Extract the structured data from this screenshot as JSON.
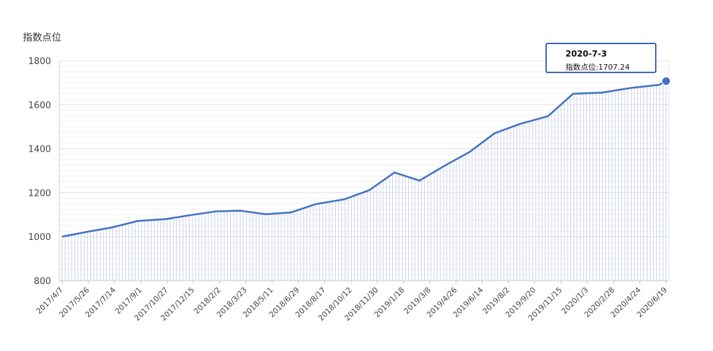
{
  "chart_data": {
    "type": "line",
    "ylabel": "指数点位",
    "ylim": [
      800,
      1800
    ],
    "yticks": [
      800,
      1000,
      1200,
      1400,
      1600,
      1800
    ],
    "xtick_labels": [
      "2017/4/7",
      "2017/5/26",
      "2017/7/14",
      "2017/9/1",
      "2017/10/27",
      "2017/12/15",
      "2018/2/2",
      "2018/3/23",
      "2018/5/11",
      "2018/6/29",
      "2018/8/17",
      "2018/10/12",
      "2018/11/30",
      "2019/1/18",
      "2019/3/8",
      "2019/4/26",
      "2019/6/14",
      "2019/8/2",
      "2019/9/20",
      "2019/11/15",
      "2020/1/3",
      "2020/2/28",
      "2020/4/24",
      "2020/6/19"
    ],
    "grid": true,
    "series": [
      {
        "color": "#4472c4",
        "points": [
          [
            "2017/4/7",
            1000
          ],
          [
            "2017/5/26",
            1022
          ],
          [
            "2017/7/14",
            1042
          ],
          [
            "2017/9/1",
            1071
          ],
          [
            "2017/10/27",
            1080
          ],
          [
            "2017/12/15",
            1098
          ],
          [
            "2018/2/2",
            1115
          ],
          [
            "2018/3/23",
            1118
          ],
          [
            "2018/5/11",
            1102
          ],
          [
            "2018/6/29",
            1110
          ],
          [
            "2018/8/17",
            1148
          ],
          [
            "2018/10/12",
            1170
          ],
          [
            "2018/11/30",
            1212
          ],
          [
            "2019/1/18",
            1292
          ],
          [
            "2019/3/8",
            1255
          ],
          [
            "2019/4/26",
            1322
          ],
          [
            "2019/6/14",
            1385
          ],
          [
            "2019/8/2",
            1470
          ],
          [
            "2019/9/20",
            1512
          ],
          [
            "2019/11/15",
            1548
          ],
          [
            "2020/1/3",
            1650
          ],
          [
            "2020/2/28",
            1655
          ],
          [
            "2020/4/24",
            1676
          ],
          [
            "2020/6/19",
            1690
          ],
          [
            "2020/7/3",
            1707.24
          ]
        ]
      }
    ]
  },
  "tooltip": {
    "date": "2020-7-3",
    "label": "指数点位:",
    "value": "1707.24"
  },
  "colors": {
    "line": "#4472c4",
    "highlight_point": "#4472c4",
    "tooltip_border": "#3c63b8",
    "grid": "#e0e0e0",
    "drop_lines": "#a8b8dc"
  }
}
